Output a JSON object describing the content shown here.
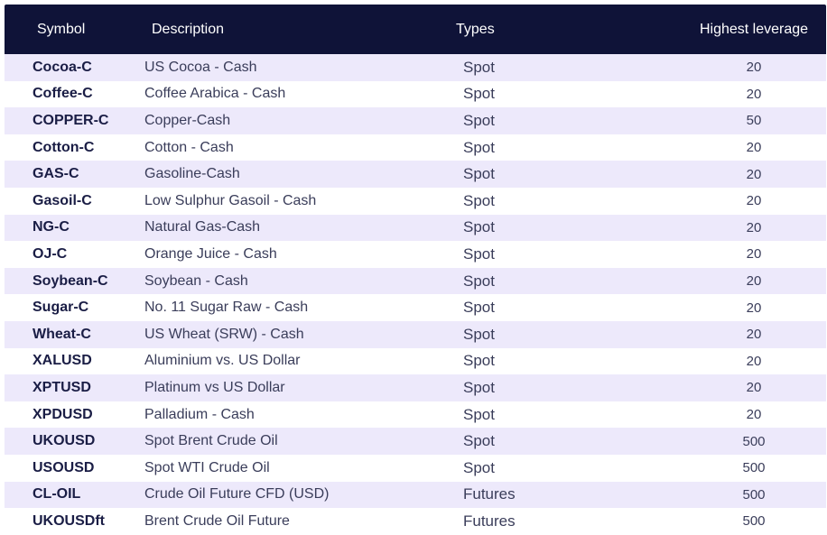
{
  "headers": {
    "symbol": "Symbol",
    "description": "Description",
    "types": "Types",
    "leverage": "Highest leverage"
  },
  "rows": [
    {
      "symbol": "Cocoa-C",
      "description": "US Cocoa - Cash",
      "type": "Spot",
      "leverage": "20"
    },
    {
      "symbol": "Coffee-C",
      "description": "Coffee Arabica - Cash",
      "type": "Spot",
      "leverage": "20"
    },
    {
      "symbol": "COPPER-C",
      "description": "Copper-Cash",
      "type": "Spot",
      "leverage": "50"
    },
    {
      "symbol": "Cotton-C",
      "description": "Cotton - Cash",
      "type": "Spot",
      "leverage": "20"
    },
    {
      "symbol": "GAS-C",
      "description": "Gasoline-Cash",
      "type": "Spot",
      "leverage": "20"
    },
    {
      "symbol": "Gasoil-C",
      "description": "Low Sulphur Gasoil - Cash",
      "type": "Spot",
      "leverage": "20"
    },
    {
      "symbol": "NG-C",
      "description": "Natural Gas-Cash",
      "type": "Spot",
      "leverage": "20"
    },
    {
      "symbol": "OJ-C",
      "description": "Orange Juice - Cash",
      "type": "Spot",
      "leverage": "20"
    },
    {
      "symbol": "Soybean-C",
      "description": "Soybean - Cash",
      "type": "Spot",
      "leverage": "20"
    },
    {
      "symbol": "Sugar-C",
      "description": "No. 11 Sugar Raw - Cash",
      "type": "Spot",
      "leverage": "20"
    },
    {
      "symbol": "Wheat-C",
      "description": "US Wheat (SRW) - Cash",
      "type": "Spot",
      "leverage": "20"
    },
    {
      "symbol": "XALUSD",
      "description": "Aluminium vs. US Dollar",
      "type": "Spot",
      "leverage": "20"
    },
    {
      "symbol": "XPTUSD",
      "description": "Platinum vs US Dollar",
      "type": "Spot",
      "leverage": "20"
    },
    {
      "symbol": "XPDUSD",
      "description": "Palladium - Cash",
      "type": "Spot",
      "leverage": "20"
    },
    {
      "symbol": "UKOUSD",
      "description": "Spot Brent Crude Oil",
      "type": "Spot",
      "leverage": "500"
    },
    {
      "symbol": "USOUSD",
      "description": "Spot WTI Crude Oil",
      "type": "Spot",
      "leverage": "500"
    },
    {
      "symbol": "CL-OIL",
      "description": "Crude Oil Future CFD (USD)",
      "type": "Futures",
      "leverage": "500"
    },
    {
      "symbol": "UKOUSDft",
      "description": "Brent Crude Oil Future",
      "type": "Futures",
      "leverage": "500"
    }
  ],
  "colors": {
    "header_bg": "#0f1338",
    "stripe": "#ede9fb",
    "symbol_text": "#1a1d45"
  }
}
